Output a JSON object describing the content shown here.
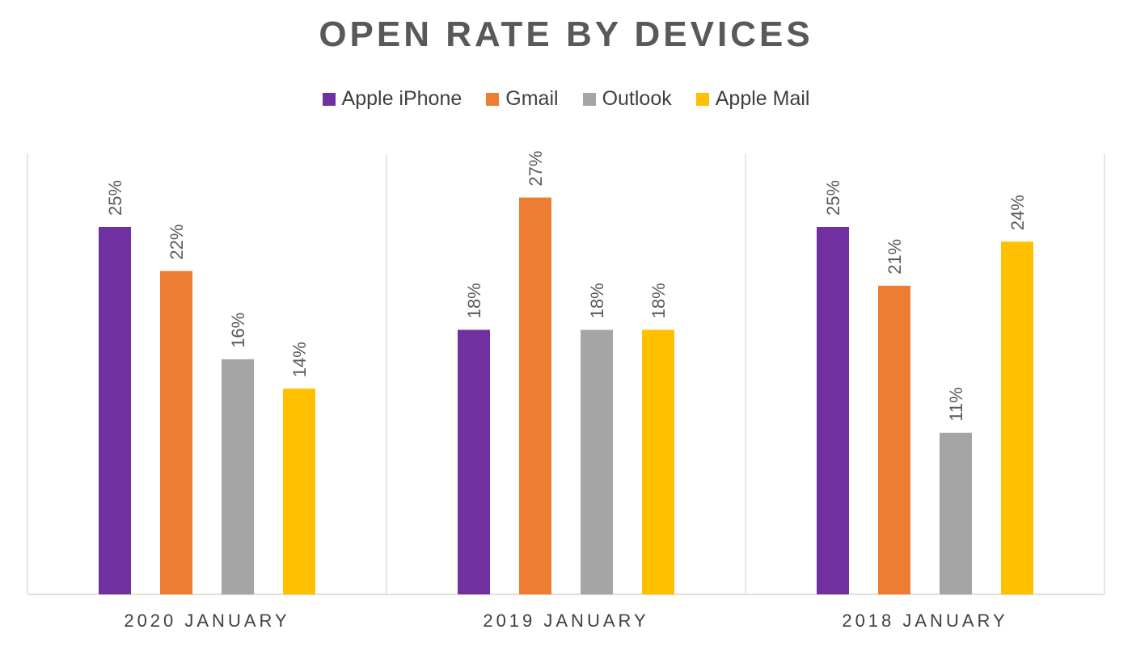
{
  "chart_data": {
    "type": "bar",
    "title": "OPEN RATE BY DEVICES",
    "categories": [
      "2020 JANUARY",
      "2019 JANUARY",
      "2018 JANUARY"
    ],
    "series": [
      {
        "name": "Apple iPhone",
        "color": "#7030a0",
        "values": [
          25,
          18,
          25
        ],
        "labels": [
          "25%",
          "18%",
          "25%"
        ]
      },
      {
        "name": "Gmail",
        "color": "#ed7d31",
        "values": [
          22,
          27,
          21
        ],
        "labels": [
          "22%",
          "27%",
          "21%"
        ]
      },
      {
        "name": "Outlook",
        "color": "#a5a5a5",
        "values": [
          16,
          18,
          11
        ],
        "labels": [
          "16%",
          "18%",
          "11%"
        ]
      },
      {
        "name": "Apple Mail",
        "color": "#ffc000",
        "values": [
          14,
          18,
          24
        ],
        "labels": [
          "14%",
          "18%",
          "24%"
        ]
      }
    ],
    "ylim": [
      0,
      30
    ],
    "legend": "top",
    "grid": false
  }
}
